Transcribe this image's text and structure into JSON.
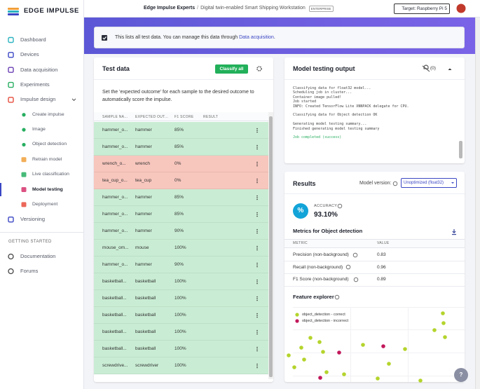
{
  "sidebar": {
    "logo": "EDGE IMPULSE",
    "nav": [
      {
        "label": "Dashboard",
        "level": 1
      },
      {
        "label": "Devices",
        "level": 1
      },
      {
        "label": "Data acquisition",
        "level": 1
      },
      {
        "label": "Experiments",
        "level": 1
      },
      {
        "label": "Impulse design",
        "level": 1
      },
      {
        "label": "Create impulse",
        "level": 2
      },
      {
        "label": "Image",
        "level": 2
      },
      {
        "label": "Object detection",
        "level": 2
      },
      {
        "label": "Retrain model",
        "level": 2
      },
      {
        "label": "Live classification",
        "level": 2
      },
      {
        "label": "Model testing",
        "level": 2,
        "active": true
      },
      {
        "label": "Deployment",
        "level": 2
      },
      {
        "label": "Versioning",
        "level": 1
      }
    ],
    "section": "GETTING STARTED",
    "help": [
      "Documentation",
      "Forums"
    ]
  },
  "topbar": {
    "org": "Edge Impulse Experts",
    "separator": "/",
    "project": "Digital twin-enabled Smart Shipping Workstation",
    "badge": "ENTERPRISE",
    "target": "Target: Raspberry Pi 5"
  },
  "notice": {
    "text": "This lists all test data. You can manage this data through",
    "link": "Data acquisition",
    "end": "."
  },
  "test_data": {
    "title": "Test data",
    "button": "Classify all",
    "description": "Set the 'expected outcome' for each sample to the desired outcome to automatically score the impulse.",
    "columns": [
      "SAMPLE NA...",
      "EXPECTED OUT...",
      "F1 SCORE",
      "RESULT"
    ],
    "rows": [
      {
        "sample": "hammer_o...",
        "expected": "hammer",
        "f1": "85%",
        "color": "#c9edd4"
      },
      {
        "sample": "hammer_o...",
        "expected": "hammer",
        "f1": "85%",
        "color": "#c9edd4"
      },
      {
        "sample": "wrench_o...",
        "expected": "wrench",
        "f1": "0%",
        "color": "#f7c6bd"
      },
      {
        "sample": "tea_cup_o...",
        "expected": "tea_cup",
        "f1": "0%",
        "color": "#f7c6bd"
      },
      {
        "sample": "hammer_o...",
        "expected": "hammer",
        "f1": "85%",
        "color": "#c9edd4"
      },
      {
        "sample": "hammer_o...",
        "expected": "hammer",
        "f1": "85%",
        "color": "#c9edd4"
      },
      {
        "sample": "hammer_o...",
        "expected": "hammer",
        "f1": "90%",
        "color": "#c9edd4"
      },
      {
        "sample": "mouse_om...",
        "expected": "mouse",
        "f1": "100%",
        "color": "#c9edd4"
      },
      {
        "sample": "hammer_o...",
        "expected": "hammer",
        "f1": "90%",
        "color": "#c9edd4"
      },
      {
        "sample": "basketball...",
        "expected": "basketball",
        "f1": "100%",
        "color": "#c9edd4"
      },
      {
        "sample": "basketball...",
        "expected": "basketball",
        "f1": "100%",
        "color": "#c9edd4"
      },
      {
        "sample": "basketball...",
        "expected": "basketball",
        "f1": "100%",
        "color": "#c9edd4"
      },
      {
        "sample": "basketball...",
        "expected": "basketball",
        "f1": "100%",
        "color": "#c9edd4"
      },
      {
        "sample": "basketball...",
        "expected": "basketball",
        "f1": "100%",
        "color": "#c9edd4"
      },
      {
        "sample": "screwdrive...",
        "expected": "screwdriver",
        "f1": "100%",
        "color": "#c9edd4"
      }
    ]
  },
  "output": {
    "title": "Model testing output",
    "count": "(0)",
    "log": [
      [
        "Classifying data for float32 model...",
        "Scheduling job in cluster...",
        "Container image pulled!",
        "Job started",
        "INFO: Created TensorFlow Lite XNNPACK delegate for CPU."
      ],
      [
        "Classifying data for Object detection OK"
      ],
      [
        "Generating model testing summary...",
        "Finished generating model testing summary"
      ]
    ],
    "success": "Job completed (success)"
  },
  "results": {
    "title": "Results",
    "version_label": "Model version:",
    "version": "Unoptimized (float32)",
    "accuracy_icon": "%",
    "accuracy_label": "ACCURACY",
    "accuracy": "93.10%",
    "metrics_title": "Metrics for Object detection",
    "metric_columns": [
      "METRIC",
      "VALUE"
    ],
    "metrics": [
      [
        "Precision (non-background)",
        "0.83"
      ],
      [
        "Recall (non-background)",
        "0.96"
      ],
      [
        "F1 Score (non-background)",
        "0.89"
      ]
    ],
    "explorer_title": "Feature explorer",
    "legend": [
      {
        "label": "object_detection - correct",
        "color": "#b4d42c"
      },
      {
        "label": "object_detection - incorrect",
        "color": "#c2185b"
      }
    ]
  },
  "help_button": "?"
}
